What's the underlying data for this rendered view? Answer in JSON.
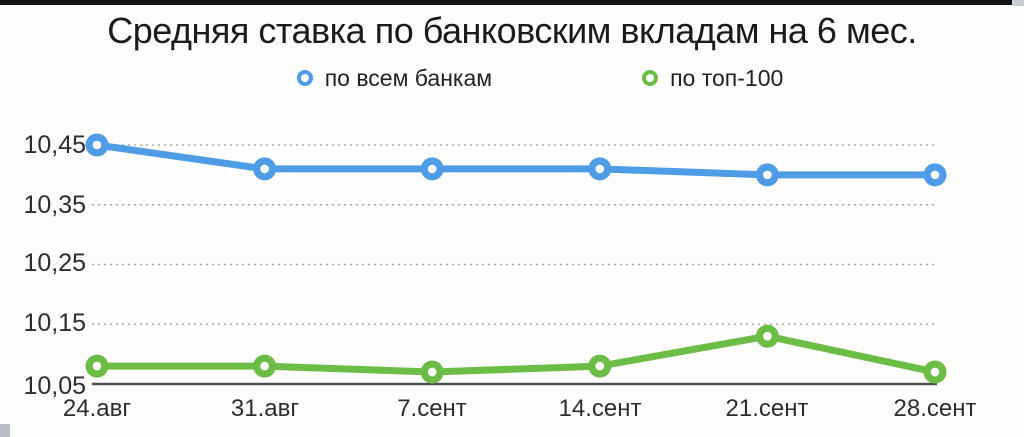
{
  "page": {
    "top_bar_color": "#101316",
    "top_bar_tail_color": "#c9ced3",
    "background": "#fdfdfd"
  },
  "chart_data": {
    "type": "line",
    "title": "Средняя ставка по банковским вкладам на 6 мес.",
    "categories": [
      "24.авг",
      "31.авг",
      "7.сент",
      "14.сент",
      "21.сент",
      "28.сент"
    ],
    "series": [
      {
        "name": "по всем банкам",
        "color": "#4e9be6",
        "values": [
          10.45,
          10.41,
          10.41,
          10.41,
          10.4,
          10.4
        ]
      },
      {
        "name": "по топ-100",
        "color": "#6cbd45",
        "values": [
          10.08,
          10.08,
          10.07,
          10.08,
          10.13,
          10.07
        ]
      }
    ],
    "y_ticks": [
      "10,45",
      "10,35",
      "10,25",
      "10,15",
      "10,05"
    ],
    "y_tick_values": [
      10.45,
      10.35,
      10.25,
      10.15,
      10.05
    ],
    "ylim": [
      10.05,
      10.45
    ],
    "xlabel": "",
    "ylabel": "",
    "grid": "horizontal-dotted",
    "legend_position": "top",
    "marker_style": "ring",
    "grid_color": "#ababab",
    "axis_color": "#4f4f4f",
    "text_color": "#2d2d2d"
  }
}
